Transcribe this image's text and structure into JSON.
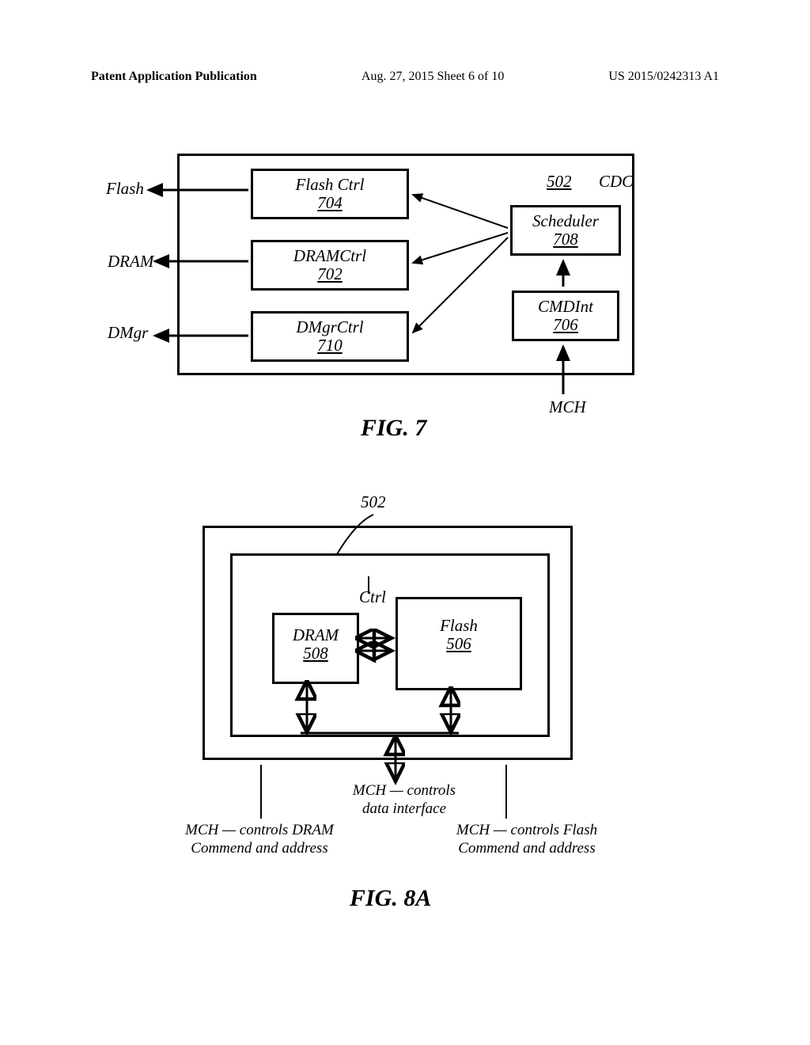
{
  "header": {
    "left": "Patent Application Publication",
    "center": "Aug. 27, 2015  Sheet 6 of 10",
    "right": "US 2015/0242313 A1"
  },
  "fig7": {
    "flash_ctrl_label": "Flash  Ctrl",
    "flash_ctrl_ref": "704",
    "dram_ctrl_label": "DRAMCtrl",
    "dram_ctrl_ref": "702",
    "dmgr_ctrl_label": "DMgrCtrl",
    "dmgr_ctrl_ref": "710",
    "scheduler_label": "Scheduler",
    "scheduler_ref": "708",
    "cmdint_label": "CMDInt",
    "cmdint_ref": "706",
    "cdc_ref": "502",
    "cdc_label": "CDC",
    "ext_flash": "Flash",
    "ext_dram": "DRAM",
    "ext_dmgr": "DMgr",
    "ext_mch": "MCH",
    "fig_label": "FIG.  7"
  },
  "fig8a": {
    "ref502": "502",
    "ctrl_text": "Ctrl",
    "dram_label": "DRAM",
    "dram_ref": "508",
    "flash_label": "Flash",
    "flash_ref": "506",
    "caption_data": "MCH — controls\ndata interface",
    "caption_left": "MCH — controls DRAM\nCommend and address",
    "caption_right": "MCH — controls Flash\nCommend and address",
    "fig_label": "FIG.  8A"
  },
  "style": {
    "stroke": "#000000",
    "stroke_width": 3,
    "bg": "#ffffff"
  }
}
